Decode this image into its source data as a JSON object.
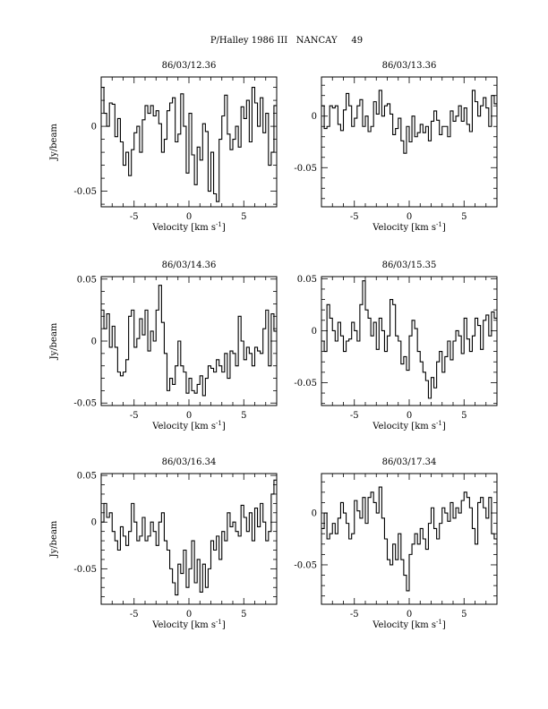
{
  "header": {
    "title": "P/Halley 1986 III   NANCAY     49"
  },
  "chart_data": [
    {
      "type": "line",
      "title": "86/03/12.36",
      "xlabel": "Velocity [km s",
      "xlabel_sup": "-1",
      "xlabel_end": "]",
      "ylabel": "Jy/beam",
      "xlim": [
        -8,
        8
      ],
      "ylim": [
        -0.062,
        0.038
      ],
      "xticks": [
        -5,
        0,
        5
      ],
      "xtick_labels": [
        "-5",
        "0",
        "5"
      ],
      "yticks": [
        0,
        -0.05
      ],
      "ytick_labels": [
        "0",
        "-0.05"
      ],
      "step": true,
      "x_start": -8,
      "x_step": 0.25,
      "y": [
        0.03,
        0.01,
        0.0,
        0.018,
        0.017,
        -0.008,
        0.006,
        -0.012,
        -0.03,
        -0.02,
        -0.038,
        -0.018,
        -0.005,
        0.0,
        -0.02,
        0.005,
        0.016,
        0.01,
        0.016,
        0.008,
        0.012,
        0.002,
        -0.02,
        -0.01,
        0.012,
        0.018,
        0.022,
        -0.012,
        -0.006,
        0.025,
        0.0,
        -0.036,
        0.01,
        -0.022,
        -0.045,
        -0.016,
        -0.026,
        0.002,
        -0.004,
        -0.05,
        -0.02,
        -0.052,
        -0.058,
        -0.01,
        0.008,
        0.024,
        -0.006,
        -0.018,
        -0.01,
        0.0,
        -0.016,
        0.015,
        0.006,
        0.02,
        -0.012,
        0.03,
        0.018,
        0.0,
        0.022,
        -0.005,
        0.01,
        -0.03,
        -0.02,
        0.016
      ]
    },
    {
      "type": "line",
      "title": "86/03/13.36",
      "xlabel": "Velocity [km s",
      "xlabel_sup": "-1",
      "xlabel_end": "]",
      "ylabel": "",
      "xlim": [
        -8,
        8
      ],
      "ylim": [
        -0.088,
        0.038
      ],
      "xticks": [
        -5,
        0,
        5
      ],
      "xtick_labels": [
        "-5",
        "0",
        "5"
      ],
      "yticks": [
        0,
        -0.05
      ],
      "ytick_labels": [
        "0",
        "-0.05"
      ],
      "step": true,
      "x_start": -8,
      "x_step": 0.25,
      "y": [
        0.01,
        -0.012,
        -0.01,
        0.01,
        0.008,
        0.01,
        -0.008,
        -0.014,
        0.006,
        0.022,
        0.01,
        -0.01,
        -0.002,
        0.01,
        0.016,
        -0.01,
        0.0,
        -0.015,
        -0.01,
        0.014,
        0.002,
        0.025,
        0.0,
        0.01,
        0.012,
        0.002,
        -0.018,
        -0.012,
        -0.002,
        -0.024,
        -0.036,
        -0.01,
        -0.025,
        0.0,
        -0.02,
        -0.016,
        -0.008,
        -0.016,
        -0.01,
        -0.024,
        -0.005,
        0.005,
        -0.004,
        -0.018,
        -0.01,
        -0.01,
        -0.02,
        0.005,
        -0.005,
        0.0,
        0.01,
        -0.005,
        0.008,
        -0.008,
        -0.015,
        0.025,
        0.014,
        0.0,
        0.01,
        0.018,
        0.008,
        -0.01,
        0.02,
        0.012
      ]
    },
    {
      "type": "line",
      "title": "86/03/14.36",
      "xlabel": "Velocity [km s",
      "xlabel_sup": "-1",
      "xlabel_end": "]",
      "ylabel": "Jy/beam",
      "xlim": [
        -8,
        8
      ],
      "ylim": [
        -0.052,
        0.052
      ],
      "xticks": [
        -5,
        0,
        5
      ],
      "xtick_labels": [
        "-5",
        "0",
        "5"
      ],
      "yticks": [
        0.05,
        0,
        -0.05
      ],
      "ytick_labels": [
        "0.05",
        "0",
        "-0.05"
      ],
      "step": true,
      "x_start": -8,
      "x_step": 0.25,
      "y": [
        0.025,
        0.01,
        0.022,
        -0.005,
        0.012,
        -0.005,
        -0.025,
        -0.028,
        -0.025,
        -0.015,
        0.02,
        0.025,
        -0.005,
        0.002,
        0.018,
        0.005,
        0.025,
        -0.008,
        0.008,
        0.0,
        0.025,
        0.045,
        0.015,
        -0.01,
        -0.04,
        -0.03,
        -0.035,
        -0.02,
        0.0,
        -0.02,
        -0.025,
        -0.042,
        -0.03,
        -0.04,
        -0.042,
        -0.035,
        -0.028,
        -0.044,
        -0.03,
        -0.02,
        -0.022,
        -0.025,
        -0.015,
        -0.02,
        -0.025,
        -0.01,
        -0.03,
        -0.008,
        -0.01,
        -0.02,
        0.02,
        0.0,
        -0.015,
        -0.005,
        -0.01,
        -0.02,
        -0.005,
        -0.008,
        -0.01,
        0.01,
        0.025,
        -0.02,
        0.022,
        0.008
      ]
    },
    {
      "type": "line",
      "title": "86/03/15.35",
      "xlabel": "Velocity [km s",
      "xlabel_sup": "-1",
      "xlabel_end": "]",
      "ylabel": "",
      "xlim": [
        -8,
        8
      ],
      "ylim": [
        -0.072,
        0.052
      ],
      "xticks": [
        -5,
        0,
        5
      ],
      "xtick_labels": [
        "-5",
        "0",
        "5"
      ],
      "yticks": [
        0.05,
        0,
        -0.05
      ],
      "ytick_labels": [
        "0.05",
        "0",
        "-0.05"
      ],
      "step": true,
      "x_start": -8,
      "x_step": 0.25,
      "y": [
        -0.01,
        -0.02,
        0.025,
        0.012,
        0.0,
        -0.01,
        0.008,
        -0.005,
        -0.02,
        -0.01,
        -0.008,
        0.008,
        0.0,
        -0.01,
        0.025,
        0.048,
        0.02,
        0.012,
        -0.005,
        0.008,
        -0.018,
        0.012,
        0.0,
        -0.02,
        -0.005,
        0.03,
        0.025,
        -0.005,
        -0.01,
        -0.032,
        -0.025,
        -0.038,
        -0.005,
        0.01,
        0.002,
        -0.02,
        -0.03,
        -0.04,
        -0.048,
        -0.065,
        -0.045,
        -0.055,
        -0.03,
        -0.02,
        -0.04,
        -0.025,
        -0.01,
        -0.028,
        -0.01,
        0.0,
        -0.005,
        -0.022,
        0.012,
        -0.008,
        -0.02,
        -0.005,
        0.012,
        0.005,
        -0.018,
        0.01,
        0.015,
        -0.005,
        0.018,
        0.012
      ]
    },
    {
      "type": "line",
      "title": "86/03/16.34",
      "xlabel": "Velocity [km s",
      "xlabel_sup": "-1",
      "xlabel_end": "]",
      "ylabel": "Jy/beam",
      "xlim": [
        -8,
        8
      ],
      "ylim": [
        -0.088,
        0.052
      ],
      "xticks": [
        -5,
        0,
        5
      ],
      "xtick_labels": [
        "-5",
        "0",
        "5"
      ],
      "yticks": [
        0.05,
        0,
        -0.05
      ],
      "ytick_labels": [
        "0.05",
        "0",
        "-0.05"
      ],
      "step": true,
      "x_start": -8,
      "x_step": 0.25,
      "y": [
        0.0,
        0.02,
        0.005,
        0.01,
        -0.01,
        -0.02,
        -0.03,
        -0.005,
        -0.015,
        -0.025,
        -0.01,
        0.02,
        0.0,
        -0.02,
        -0.015,
        0.005,
        -0.02,
        -0.015,
        0.0,
        -0.01,
        -0.025,
        0.0,
        0.01,
        -0.02,
        -0.03,
        -0.05,
        -0.065,
        -0.078,
        -0.045,
        -0.055,
        -0.03,
        -0.07,
        -0.05,
        -0.02,
        -0.065,
        -0.04,
        -0.075,
        -0.045,
        -0.07,
        -0.05,
        -0.02,
        -0.03,
        -0.015,
        -0.04,
        -0.01,
        -0.02,
        0.01,
        -0.005,
        0.0,
        -0.01,
        -0.015,
        0.018,
        0.005,
        -0.01,
        0.01,
        -0.02,
        0.015,
        -0.005,
        0.02,
        0.0,
        -0.02,
        -0.01,
        0.03,
        0.045
      ]
    },
    {
      "type": "line",
      "title": "86/03/17.34",
      "xlabel": "Velocity [km s",
      "xlabel_sup": "-1",
      "xlabel_end": "]",
      "ylabel": "",
      "xlim": [
        -8,
        8
      ],
      "ylim": [
        -0.088,
        0.038
      ],
      "xticks": [
        -5,
        0,
        5
      ],
      "xtick_labels": [
        "-5",
        "0",
        "5"
      ],
      "yticks": [
        0,
        -0.05
      ],
      "ytick_labels": [
        "0",
        "-0.05"
      ],
      "step": true,
      "x_start": -8,
      "x_step": 0.25,
      "y": [
        -0.015,
        0.0,
        -0.025,
        -0.02,
        -0.01,
        -0.02,
        -0.005,
        0.01,
        0.0,
        -0.01,
        -0.025,
        -0.02,
        0.012,
        0.002,
        -0.005,
        0.015,
        -0.01,
        0.015,
        0.02,
        0.01,
        0.0,
        0.025,
        -0.005,
        -0.025,
        -0.045,
        -0.05,
        -0.03,
        -0.045,
        -0.02,
        -0.045,
        -0.06,
        -0.075,
        -0.04,
        -0.03,
        -0.02,
        -0.03,
        -0.015,
        -0.025,
        -0.035,
        -0.01,
        0.005,
        -0.015,
        -0.025,
        -0.01,
        0.005,
        0.0,
        -0.008,
        0.01,
        -0.005,
        0.005,
        0.0,
        0.012,
        0.02,
        0.015,
        0.005,
        -0.015,
        -0.03,
        0.01,
        0.015,
        0.005,
        -0.005,
        0.015,
        -0.02,
        -0.025
      ]
    }
  ]
}
